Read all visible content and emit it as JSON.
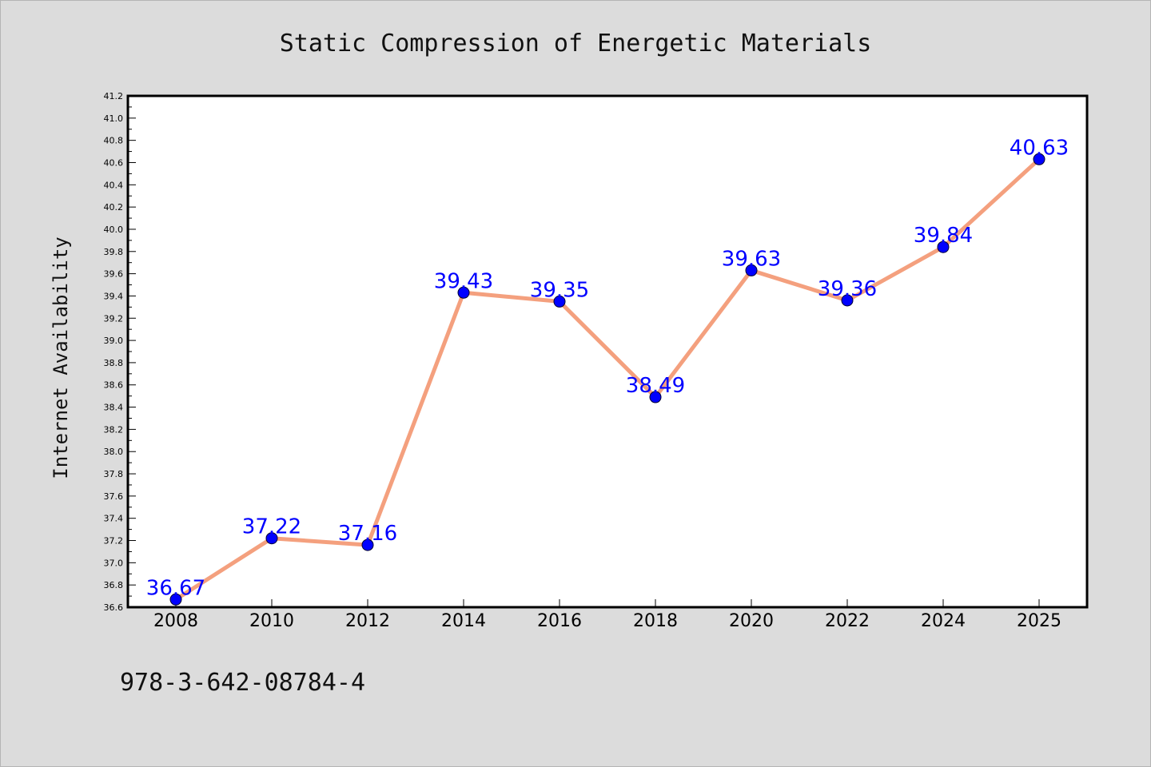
{
  "chart_data": {
    "type": "line",
    "title": "Static Compression of Energetic Materials",
    "xlabel": "",
    "ylabel": "Internet Availability",
    "categories": [
      "2008",
      "2010",
      "2012",
      "2014",
      "2016",
      "2018",
      "2020",
      "2022",
      "2024",
      "2025"
    ],
    "values": [
      36.67,
      37.22,
      37.16,
      39.43,
      39.35,
      38.49,
      39.63,
      39.36,
      39.84,
      40.63
    ],
    "value_labels": [
      "36.67",
      "37.22",
      "37.16",
      "39.43",
      "39.35",
      "38.49",
      "39.63",
      "39.36",
      "39.84",
      "40.63"
    ],
    "ylim": [
      36.6,
      41.2
    ],
    "yticks": [
      "36.6",
      "36.8",
      "37.0",
      "37.2",
      "37.4",
      "37.6",
      "37.8",
      "38.0",
      "38.2",
      "38.4",
      "38.6",
      "38.8",
      "39.0",
      "39.2",
      "39.4",
      "39.6",
      "39.8",
      "40.0",
      "40.2",
      "40.4",
      "40.6",
      "40.8",
      "41.0",
      "41.2"
    ],
    "grid": false,
    "legend": "none",
    "colors": {
      "line": "#f4a07e",
      "marker": "#0000ff",
      "label": "#0000ff",
      "background": "#dcdcdc",
      "plot_bg": "#ffffff"
    }
  },
  "footer": {
    "isbn": "978-3-642-08784-4"
  }
}
